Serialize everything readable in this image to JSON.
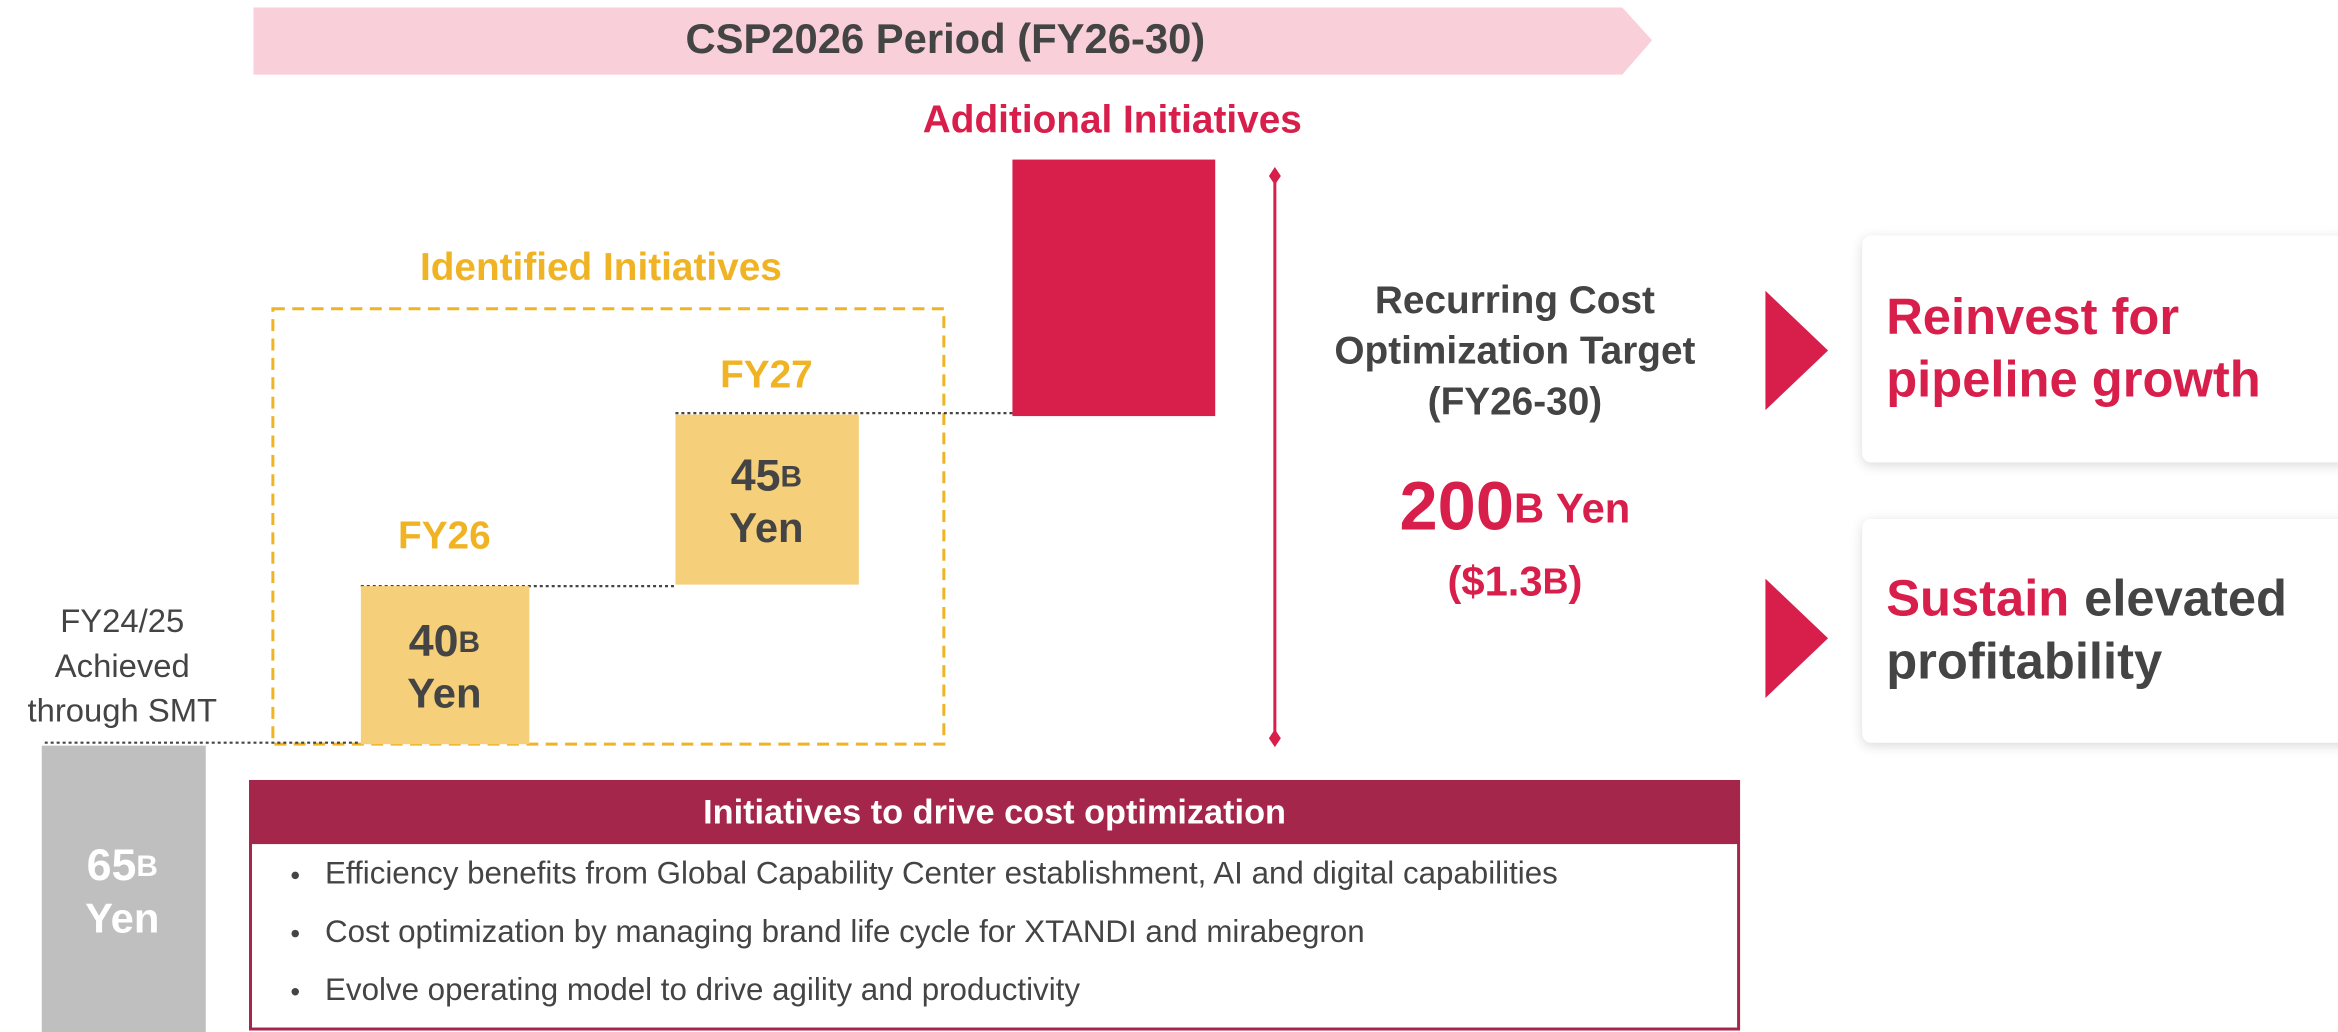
{
  "header": {
    "title": "CSP2026 Period (FY26-30)"
  },
  "additional": {
    "title": "Additional Initiatives"
  },
  "identified": {
    "title": "Identified Initiatives"
  },
  "steps": [
    {
      "label": "FY26",
      "amount": "40",
      "unit": "B",
      "currency": "Yen"
    },
    {
      "label": "FY27",
      "amount": "45",
      "unit": "B",
      "currency": "Yen"
    }
  ],
  "baseline": {
    "label_lines": [
      "FY24/25",
      "Achieved",
      "through SMT"
    ],
    "amount": "65",
    "unit": "B",
    "currency": "Yen"
  },
  "target": {
    "title_lines": [
      "Recurring Cost",
      "Optimization Target",
      "(FY26-30)"
    ],
    "amount": "200",
    "unit": "B",
    "currency": "Yen",
    "usd_open": "($1.3",
    "usd_unit": "B",
    "usd_close": ")"
  },
  "outcomes": [
    {
      "lines": [
        "Reinvest for",
        "pipeline growth"
      ]
    },
    {
      "highlight": "Sustain",
      "rest": "elevated",
      "line2": "profitability"
    }
  ],
  "initiatives": {
    "title": "Initiatives to drive cost optimization",
    "items": [
      "Efficiency benefits from Global Capability Center establishment, AI and digital capabilities",
      "Cost optimization by managing brand life cycle for XTANDI and mirabegron",
      "Evolve operating model to drive agility and productivity"
    ]
  }
}
